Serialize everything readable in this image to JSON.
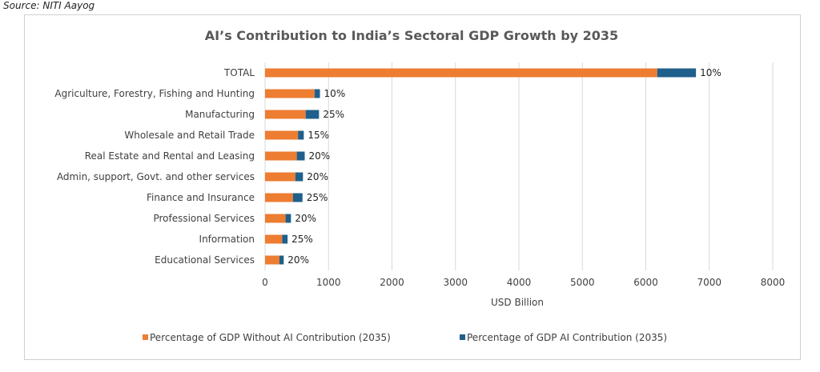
{
  "source": "Source: NITI Aayog",
  "colors": {
    "without": "#ED7D31",
    "ai": "#1F5F8B",
    "grid": "#d9d9d9",
    "text": "#404040"
  },
  "chart_data": {
    "type": "bar",
    "orientation": "horizontal",
    "stacked": true,
    "title": "AI’s Contribution to India’s Sectoral GDP Growth by 2035",
    "xlabel": "USD Billion",
    "ylabel": "",
    "xlim": [
      0,
      8000
    ],
    "xticks": [
      0,
      1000,
      2000,
      3000,
      4000,
      5000,
      6000,
      7000,
      8000
    ],
    "grid": true,
    "legend_position": "bottom",
    "categories": [
      "TOTAL",
      "Agriculture, Forestry, Fishing and Hunting",
      "Manufacturing",
      "Wholesale and Retail Trade",
      "Real Estate and Rental and Leasing",
      "Admin, support, Govt. and other services",
      "Finance and Insurance",
      "Professional Services",
      "Information",
      "Educational Services"
    ],
    "series": [
      {
        "name": "Percentage of GDP Without AI Contribution (2035)",
        "values": [
          6180,
          780,
          640,
          520,
          500,
          477,
          440,
          323,
          270,
          227
        ]
      },
      {
        "name": "Percentage of GDP AI Contribution (2035)",
        "values": [
          610,
          85,
          210,
          90,
          125,
          120,
          150,
          85,
          85,
          67
        ]
      }
    ],
    "data_labels": [
      "10%",
      "10%",
      "25%",
      "15%",
      "20%",
      "20%",
      "25%",
      "20%",
      "25%",
      "20%"
    ]
  }
}
